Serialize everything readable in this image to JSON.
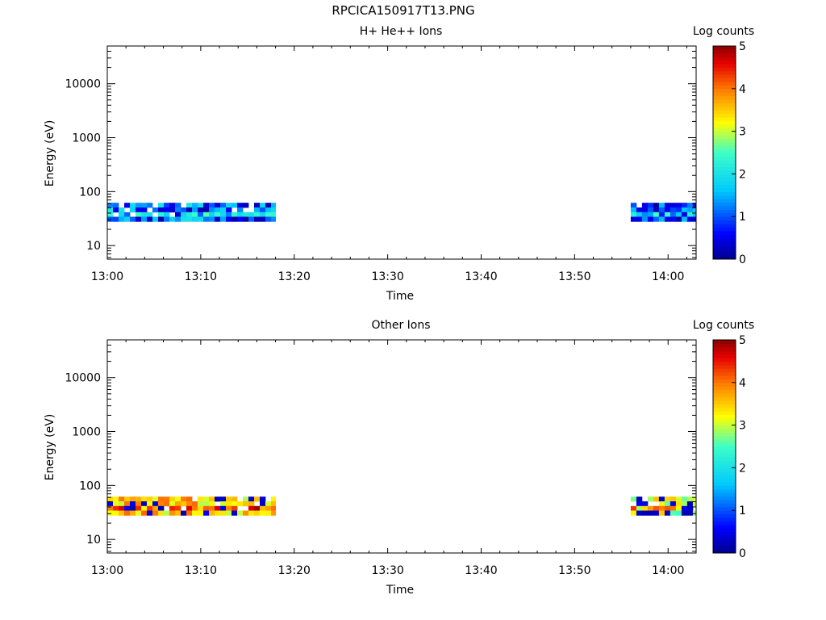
{
  "page": {
    "title": "RPCICA150917T13.PNG"
  },
  "chart_data": [
    {
      "type": "heatmap",
      "title": "H+ He++ Ions",
      "xlabel": "Time",
      "ylabel": "Energy (eV)",
      "x_range": [
        "13:00",
        "14:03"
      ],
      "x_ticks": [
        "13:00",
        "13:10",
        "13:20",
        "13:30",
        "13:40",
        "13:50",
        "14:00"
      ],
      "y_scale": "log",
      "y_range": [
        5.6,
        50000
      ],
      "y_ticks": [
        "10",
        "100",
        "1000",
        "10000"
      ],
      "colorbar": {
        "label": "Log counts",
        "range": [
          0,
          5
        ],
        "ticks": [
          "0",
          "1",
          "2",
          "3",
          "4",
          "5"
        ],
        "colormap": "rainbow"
      },
      "data_blocks": [
        {
          "t_start": "13:00",
          "t_end": "13:18",
          "e_min": 28,
          "e_max": 62,
          "typical_log_counts": 1.5,
          "peak_log_counts": 2.5
        },
        {
          "t_start": "13:56",
          "t_end": "14:03",
          "e_min": 28,
          "e_max": 62,
          "typical_log_counts": 1.0,
          "peak_log_counts": 2.5
        }
      ]
    },
    {
      "type": "heatmap",
      "title": "Other Ions",
      "xlabel": "Time",
      "ylabel": "Energy (eV)",
      "x_range": [
        "13:00",
        "14:03"
      ],
      "x_ticks": [
        "13:00",
        "13:10",
        "13:20",
        "13:30",
        "13:40",
        "13:50",
        "14:00"
      ],
      "y_scale": "log",
      "y_range": [
        5.6,
        50000
      ],
      "y_ticks": [
        "10",
        "100",
        "1000",
        "10000"
      ],
      "colorbar": {
        "label": "Log counts",
        "range": [
          0,
          5
        ],
        "ticks": [
          "0",
          "1",
          "2",
          "3",
          "4",
          "5"
        ],
        "colormap": "rainbow"
      },
      "data_blocks": [
        {
          "t_start": "13:00",
          "t_end": "13:18",
          "e_min": 28,
          "e_max": 62,
          "typical_log_counts": 3.5,
          "peak_log_counts": 4.5
        },
        {
          "t_start": "13:56",
          "t_end": "14:03",
          "e_min": 28,
          "e_max": 62,
          "typical_log_counts": 3.0,
          "peak_log_counts": 4.5
        }
      ]
    }
  ]
}
